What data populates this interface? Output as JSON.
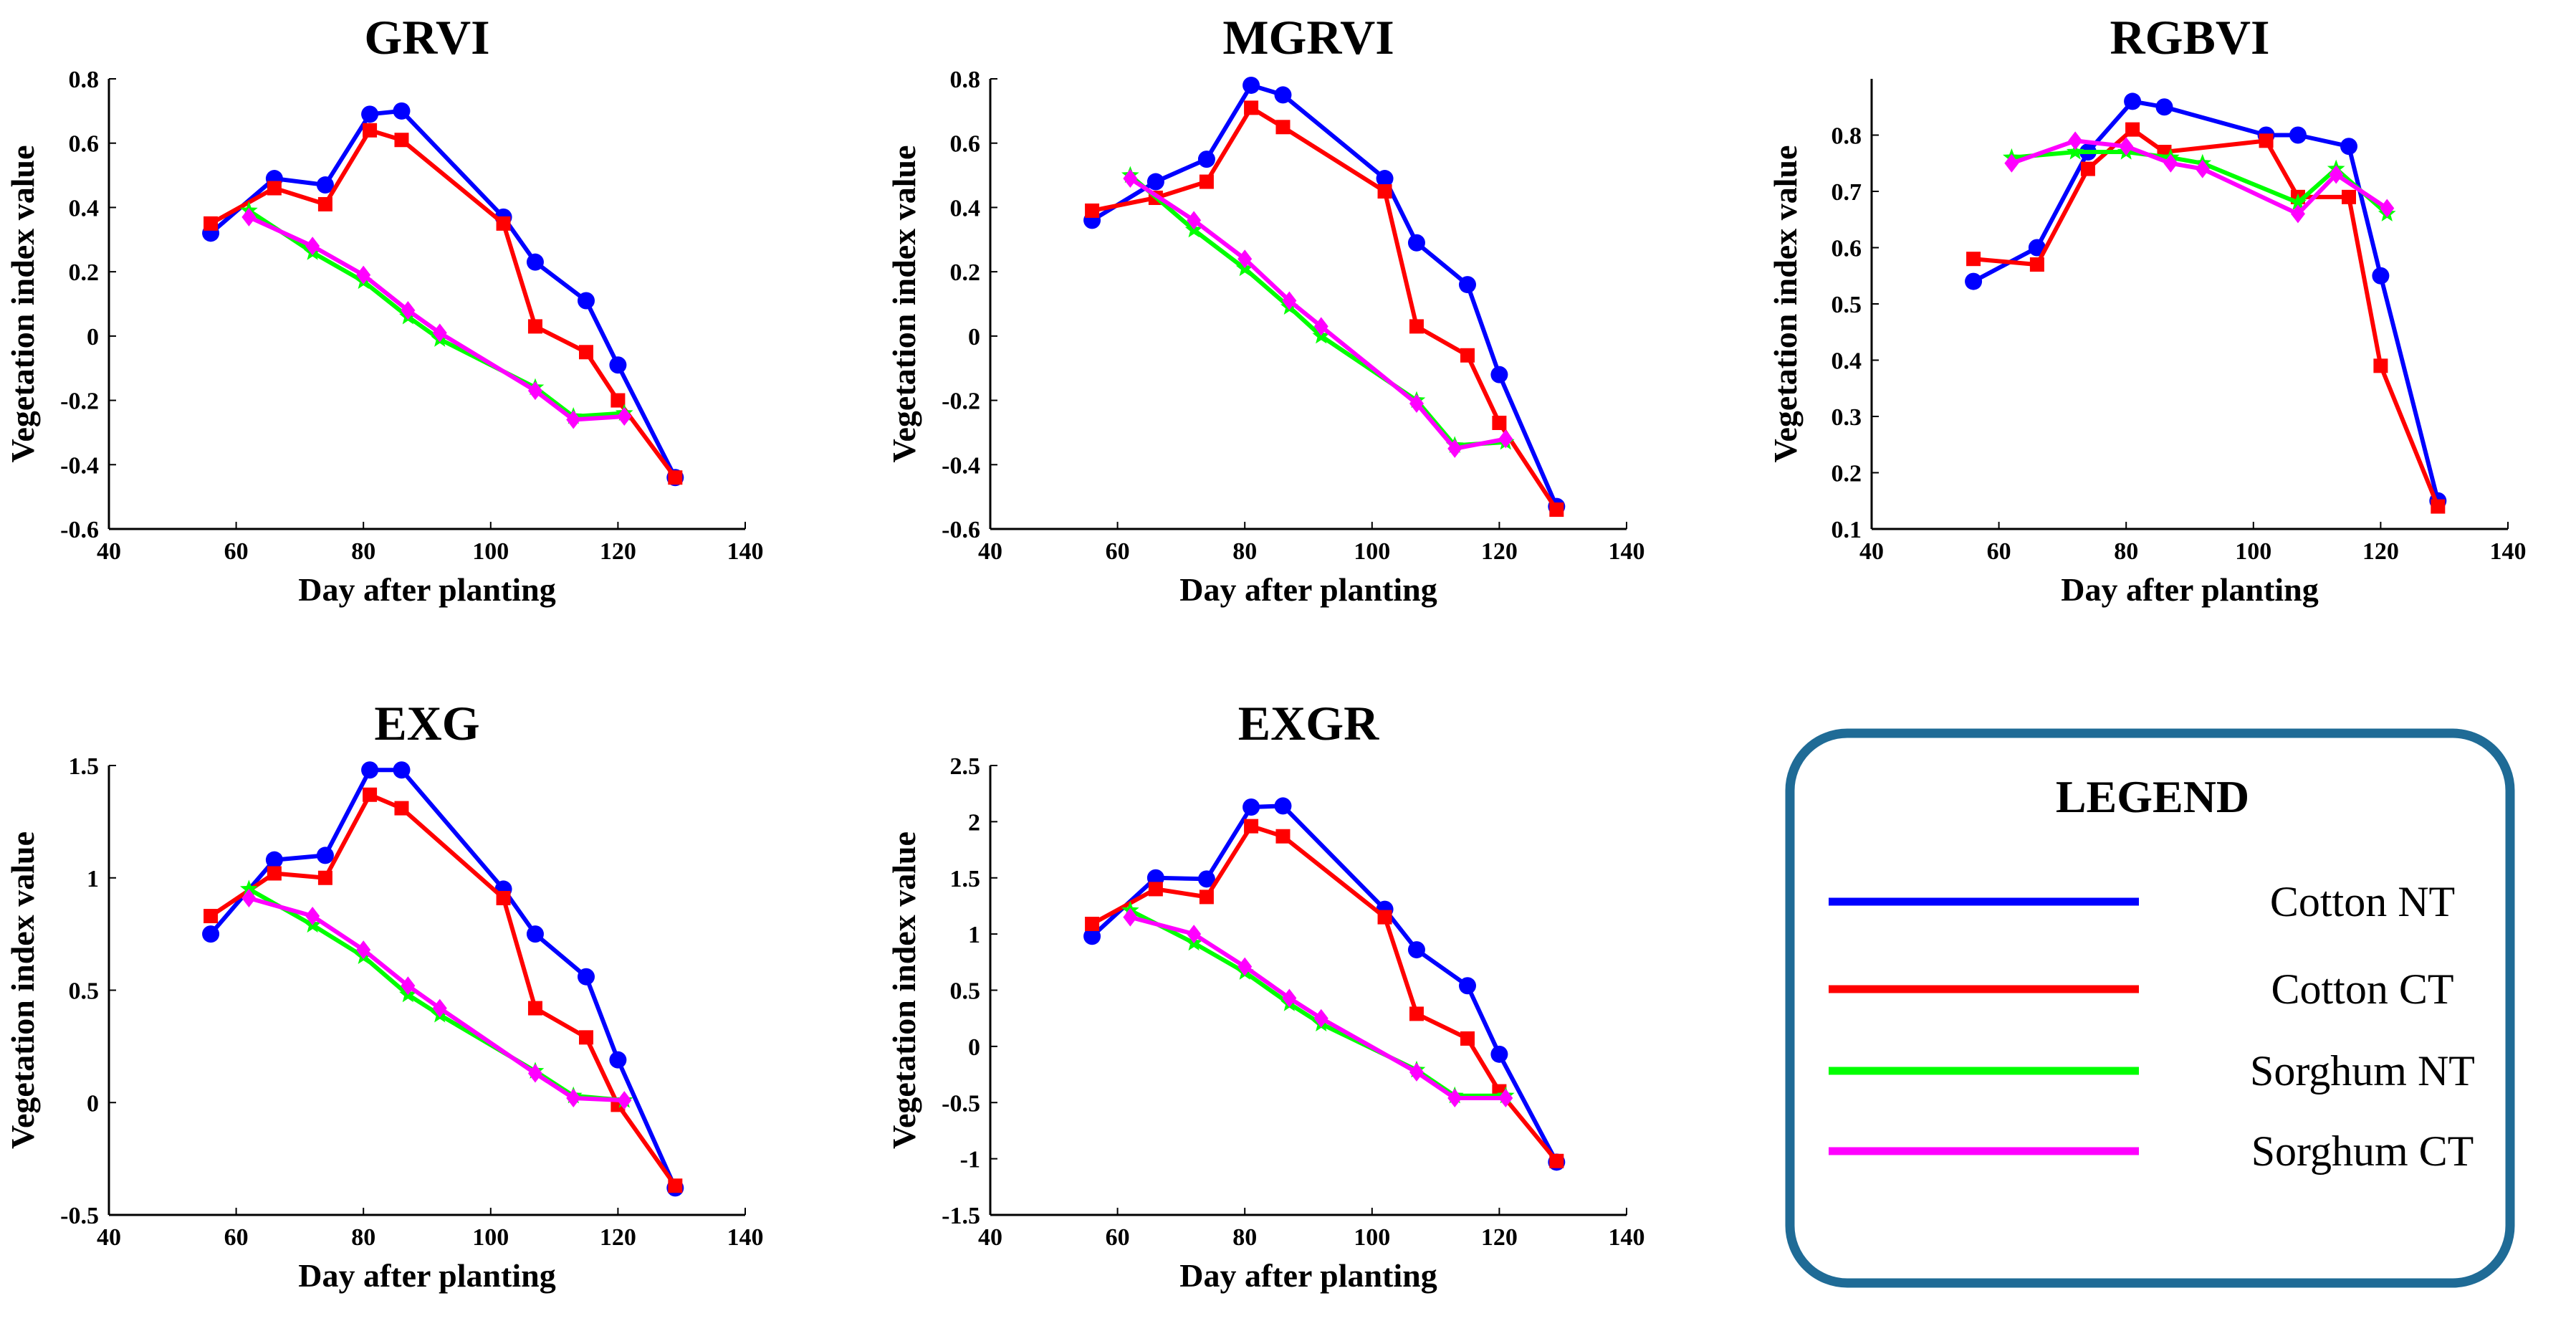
{
  "legend": {
    "title": "LEGEND",
    "entries": [
      {
        "name": "Cotton NT",
        "color": "#0000ff"
      },
      {
        "name": "Cotton CT",
        "color": "#ff0000"
      },
      {
        "name": "Sorghum NT",
        "color": "#00ff00"
      },
      {
        "name": "Sorghum CT",
        "color": "#ff00ff"
      }
    ],
    "border_color": "#1f6b96"
  },
  "chart_data": [
    {
      "type": "line",
      "title": "GRVI",
      "xlabel": "Day after planting",
      "ylabel": "Vegetation index value",
      "xlim": [
        40,
        140
      ],
      "ylim": [
        -0.6,
        0.8
      ],
      "xticks": [
        "40",
        "60",
        "80",
        "100",
        "120",
        "140"
      ],
      "yticks": [
        "-0.6",
        "-0.4",
        "-0.2",
        "0",
        "0.2",
        "0.4",
        "0.6",
        "0.8"
      ],
      "series": [
        {
          "name": "Cotton NT",
          "x": [
            56,
            66,
            74,
            81,
            86,
            102,
            107,
            115,
            120,
            129
          ],
          "values": [
            0.32,
            0.49,
            0.47,
            0.69,
            0.7,
            0.37,
            0.23,
            0.11,
            -0.09,
            -0.44
          ]
        },
        {
          "name": "Cotton CT",
          "x": [
            56,
            66,
            74,
            81,
            86,
            102,
            107,
            115,
            120,
            129
          ],
          "values": [
            0.35,
            0.46,
            0.41,
            0.64,
            0.61,
            0.35,
            0.03,
            -0.05,
            -0.2,
            -0.44
          ]
        },
        {
          "name": "Sorghum NT",
          "x": [
            62,
            72,
            80,
            87,
            92,
            107,
            113,
            121
          ],
          "values": [
            0.39,
            0.26,
            0.17,
            0.06,
            -0.01,
            -0.16,
            -0.25,
            -0.24
          ]
        },
        {
          "name": "Sorghum CT",
          "x": [
            62,
            72,
            80,
            87,
            92,
            107,
            113,
            121
          ],
          "values": [
            0.37,
            0.28,
            0.19,
            0.08,
            0.01,
            -0.17,
            -0.26,
            -0.25
          ]
        }
      ]
    },
    {
      "type": "line",
      "title": "MGRVI",
      "xlabel": "Day after planting",
      "ylabel": "Vegetation index value",
      "xlim": [
        40,
        140
      ],
      "ylim": [
        -0.6,
        0.8
      ],
      "xticks": [
        "40",
        "60",
        "80",
        "100",
        "120",
        "140"
      ],
      "yticks": [
        "-0.6",
        "-0.4",
        "-0.2",
        "0",
        "0.2",
        "0.4",
        "0.6",
        "0.8"
      ],
      "series": [
        {
          "name": "Cotton NT",
          "x": [
            56,
            66,
            74,
            81,
            86,
            102,
            107,
            115,
            120,
            129
          ],
          "values": [
            0.36,
            0.48,
            0.55,
            0.78,
            0.75,
            0.49,
            0.29,
            0.16,
            -0.12,
            -0.53
          ]
        },
        {
          "name": "Cotton CT",
          "x": [
            56,
            66,
            74,
            81,
            86,
            102,
            107,
            115,
            120,
            129
          ],
          "values": [
            0.39,
            0.43,
            0.48,
            0.71,
            0.65,
            0.45,
            0.03,
            -0.06,
            -0.27,
            -0.54
          ]
        },
        {
          "name": "Sorghum NT",
          "x": [
            62,
            72,
            80,
            87,
            92,
            107,
            113,
            121
          ],
          "values": [
            0.5,
            0.33,
            0.21,
            0.09,
            0.0,
            -0.2,
            -0.34,
            -0.33
          ]
        },
        {
          "name": "Sorghum CT",
          "x": [
            62,
            72,
            80,
            87,
            92,
            107,
            113,
            121
          ],
          "values": [
            0.49,
            0.36,
            0.24,
            0.11,
            0.03,
            -0.21,
            -0.35,
            -0.32
          ]
        }
      ]
    },
    {
      "type": "line",
      "title": "RGBVI",
      "xlabel": "Day after planting",
      "ylabel": "Vegetation index value",
      "xlim": [
        40,
        140
      ],
      "ylim": [
        0.1,
        0.9
      ],
      "xticks": [
        "40",
        "60",
        "80",
        "100",
        "120",
        "140"
      ],
      "yticks": [
        "0.1",
        "0.2",
        "0.3",
        "0.4",
        "0.5",
        "0.6",
        "0.7",
        "0.8"
      ],
      "series": [
        {
          "name": "Cotton NT",
          "x": [
            56,
            66,
            74,
            81,
            86,
            102,
            107,
            115,
            120,
            129
          ],
          "values": [
            0.54,
            0.6,
            0.77,
            0.86,
            0.85,
            0.8,
            0.8,
            0.78,
            0.55,
            0.15
          ]
        },
        {
          "name": "Cotton CT",
          "x": [
            56,
            66,
            74,
            81,
            86,
            102,
            107,
            115,
            120,
            129
          ],
          "values": [
            0.58,
            0.57,
            0.74,
            0.81,
            0.77,
            0.79,
            0.69,
            0.69,
            0.39,
            0.14
          ]
        },
        {
          "name": "Sorghum NT",
          "x": [
            62,
            72,
            80,
            87,
            92,
            107,
            113,
            121
          ],
          "values": [
            0.76,
            0.77,
            0.77,
            0.76,
            0.75,
            0.68,
            0.74,
            0.66
          ]
        },
        {
          "name": "Sorghum CT",
          "x": [
            62,
            72,
            80,
            87,
            92,
            107,
            113,
            121
          ],
          "values": [
            0.75,
            0.79,
            0.78,
            0.75,
            0.74,
            0.66,
            0.73,
            0.67
          ]
        }
      ]
    },
    {
      "type": "line",
      "title": "EXG",
      "xlabel": "Day after planting",
      "ylabel": "Vegetation index value",
      "xlim": [
        40,
        140
      ],
      "ylim": [
        -0.5,
        1.5
      ],
      "xticks": [
        "40",
        "60",
        "80",
        "100",
        "120",
        "140"
      ],
      "yticks": [
        "-0.5",
        "0",
        "0.5",
        "1",
        "1.5"
      ],
      "series": [
        {
          "name": "Cotton NT",
          "x": [
            56,
            66,
            74,
            81,
            86,
            102,
            107,
            115,
            120,
            129
          ],
          "values": [
            0.75,
            1.08,
            1.1,
            1.48,
            1.48,
            0.95,
            0.75,
            0.56,
            0.19,
            -0.38
          ]
        },
        {
          "name": "Cotton CT",
          "x": [
            56,
            66,
            74,
            81,
            86,
            102,
            107,
            115,
            120,
            129
          ],
          "values": [
            0.83,
            1.02,
            1.0,
            1.37,
            1.31,
            0.91,
            0.42,
            0.29,
            -0.01,
            -0.37
          ]
        },
        {
          "name": "Sorghum NT",
          "x": [
            62,
            72,
            80,
            87,
            92,
            107,
            113,
            121
          ],
          "values": [
            0.95,
            0.79,
            0.65,
            0.48,
            0.39,
            0.14,
            0.03,
            0.01
          ]
        },
        {
          "name": "Sorghum CT",
          "x": [
            62,
            72,
            80,
            87,
            92,
            107,
            113,
            121
          ],
          "values": [
            0.91,
            0.83,
            0.68,
            0.52,
            0.42,
            0.13,
            0.02,
            0.01
          ]
        }
      ]
    },
    {
      "type": "line",
      "title": "EXGR",
      "xlabel": "Day after planting",
      "ylabel": "Vegetation index value",
      "xlim": [
        40,
        140
      ],
      "ylim": [
        -1.5,
        2.5
      ],
      "xticks": [
        "40",
        "60",
        "80",
        "100",
        "120",
        "140"
      ],
      "yticks": [
        "-1.5",
        "-1",
        "-0.5",
        "0",
        "0.5",
        "1",
        "1.5",
        "2",
        "2.5"
      ],
      "series": [
        {
          "name": "Cotton NT",
          "x": [
            56,
            66,
            74,
            81,
            86,
            102,
            107,
            115,
            120,
            129
          ],
          "values": [
            0.98,
            1.5,
            1.49,
            2.13,
            2.14,
            1.22,
            0.86,
            0.54,
            -0.07,
            -1.03
          ]
        },
        {
          "name": "Cotton CT",
          "x": [
            56,
            66,
            74,
            81,
            86,
            102,
            107,
            115,
            120,
            129
          ],
          "values": [
            1.09,
            1.4,
            1.33,
            1.96,
            1.87,
            1.15,
            0.29,
            0.07,
            -0.4,
            -1.02
          ]
        },
        {
          "name": "Sorghum NT",
          "x": [
            62,
            72,
            80,
            87,
            92,
            107,
            113,
            121
          ],
          "values": [
            1.21,
            0.92,
            0.66,
            0.38,
            0.2,
            -0.21,
            -0.44,
            -0.44
          ]
        },
        {
          "name": "Sorghum CT",
          "x": [
            62,
            72,
            80,
            87,
            92,
            107,
            113,
            121
          ],
          "values": [
            1.15,
            1.0,
            0.71,
            0.43,
            0.25,
            -0.23,
            -0.46,
            -0.46
          ]
        }
      ]
    }
  ]
}
